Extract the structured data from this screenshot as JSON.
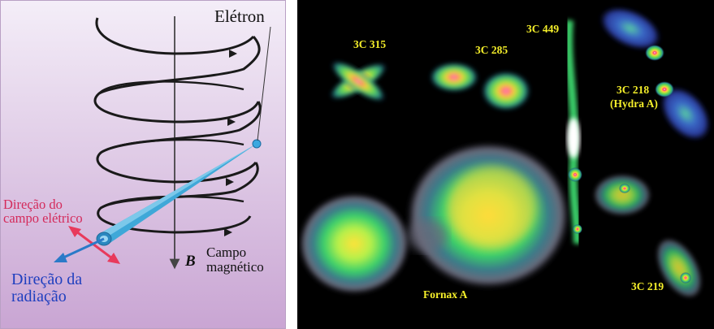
{
  "diagram": {
    "electron_label": "Elétron",
    "efield_label_line1": "Direção do",
    "efield_label_line2": "campo elétrico",
    "radiation_label_line1": "Direção da",
    "radiation_label_line2": "radiação",
    "field_symbol": "B",
    "field_label_line1": "Campo",
    "field_label_line2": "magnético",
    "colors": {
      "background_top": "#f4eef8",
      "background_bottom": "#c9a5d3",
      "helix": "#1a1a1a",
      "beam": "#3fa8d8",
      "efield": "#e83a5c",
      "radiation": "#2a7ac8",
      "efield_text": "#d42a5a",
      "radiation_text": "#1f3fbf"
    }
  },
  "radio_sources": {
    "text_color": "#f5ef2a",
    "labels": [
      {
        "id": "3c315",
        "text": "3C 315"
      },
      {
        "id": "3c285",
        "text": "3C 285"
      },
      {
        "id": "3c449",
        "text": "3C 449"
      },
      {
        "id": "3c218",
        "text": "3C 218"
      },
      {
        "id": "hydra",
        "text": "(Hydra A)"
      },
      {
        "id": "fornax",
        "text": "Fornax A"
      },
      {
        "id": "3c219",
        "text": "3C 219"
      }
    ]
  }
}
